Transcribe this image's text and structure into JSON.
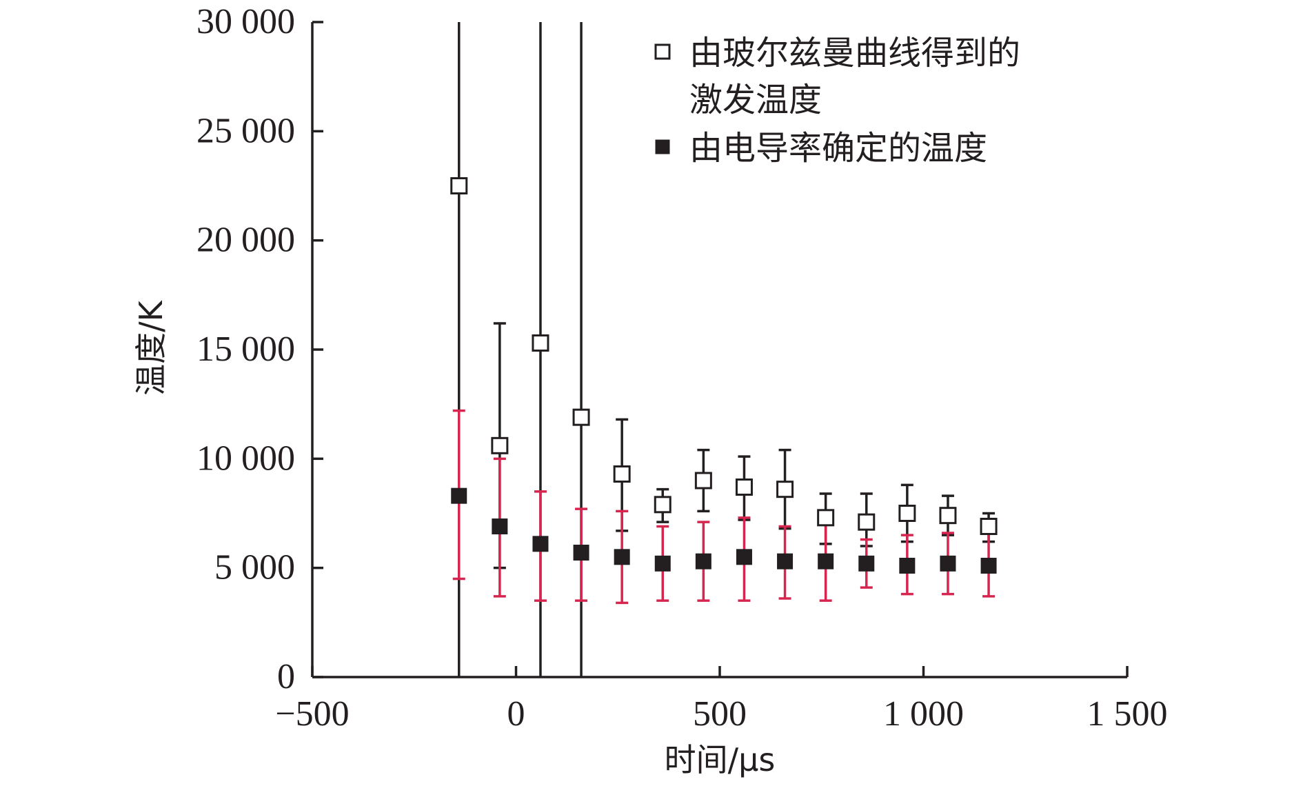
{
  "chart_data": {
    "type": "scatter",
    "xlabel": "时间/μs",
    "ylabel": "温度/K",
    "xlim": [
      -500,
      1500
    ],
    "ylim": [
      0,
      30000
    ],
    "x_ticks": [
      {
        "value": -500,
        "label": "−500"
      },
      {
        "value": 0,
        "label": "0"
      },
      {
        "value": 500,
        "label": "500"
      },
      {
        "value": 1000,
        "label": "1 000"
      },
      {
        "value": 1500,
        "label": "1 500"
      }
    ],
    "y_ticks": [
      {
        "value": 0,
        "label": "0"
      },
      {
        "value": 5000,
        "label": "5 000"
      },
      {
        "value": 10000,
        "label": "10 000"
      },
      {
        "value": 15000,
        "label": "15 000"
      },
      {
        "value": 20000,
        "label": "20 000"
      },
      {
        "value": 25000,
        "label": "25 000"
      },
      {
        "value": 30000,
        "label": "30 000"
      }
    ],
    "grid": false,
    "legend_position": "top-right",
    "series": [
      {
        "name": "由玻尔兹曼曲线得到的激发温度",
        "legend_lines": [
          "由玻尔兹曼曲线得到的",
          "激发温度"
        ],
        "marker": "open-square",
        "color": "#231f20",
        "error_color": "#231f20",
        "points": [
          {
            "x": -140,
            "y": 22500,
            "lo": 0,
            "hi": 30000
          },
          {
            "x": -40,
            "y": 10600,
            "lo": 5000,
            "hi": 16200
          },
          {
            "x": 60,
            "y": 15300,
            "lo": 0,
            "hi": 30000
          },
          {
            "x": 160,
            "y": 11900,
            "lo": 0,
            "hi": 30000
          },
          {
            "x": 260,
            "y": 9300,
            "lo": 6700,
            "hi": 11800
          },
          {
            "x": 360,
            "y": 7900,
            "lo": 7100,
            "hi": 8600
          },
          {
            "x": 460,
            "y": 9000,
            "lo": 7600,
            "hi": 10400
          },
          {
            "x": 560,
            "y": 8700,
            "lo": 7200,
            "hi": 10100
          },
          {
            "x": 660,
            "y": 8600,
            "lo": 6800,
            "hi": 10400
          },
          {
            "x": 760,
            "y": 7300,
            "lo": 6100,
            "hi": 8400
          },
          {
            "x": 860,
            "y": 7100,
            "lo": 6000,
            "hi": 8400
          },
          {
            "x": 960,
            "y": 7500,
            "lo": 6200,
            "hi": 8800
          },
          {
            "x": 1060,
            "y": 7400,
            "lo": 6500,
            "hi": 8300
          },
          {
            "x": 1160,
            "y": 6900,
            "lo": 6200,
            "hi": 7500
          }
        ]
      },
      {
        "name": "由电导率确定的温度",
        "legend_lines": [
          "由电导率确定的温度"
        ],
        "marker": "filled-square",
        "color": "#231f20",
        "error_color": "#d6264f",
        "points": [
          {
            "x": -140,
            "y": 8300,
            "lo": 4500,
            "hi": 12200
          },
          {
            "x": -40,
            "y": 6900,
            "lo": 3700,
            "hi": 10000
          },
          {
            "x": 60,
            "y": 6100,
            "lo": 3500,
            "hi": 8500
          },
          {
            "x": 160,
            "y": 5700,
            "lo": 3500,
            "hi": 7700
          },
          {
            "x": 260,
            "y": 5500,
            "lo": 3400,
            "hi": 7600
          },
          {
            "x": 360,
            "y": 5200,
            "lo": 3500,
            "hi": 6900
          },
          {
            "x": 460,
            "y": 5300,
            "lo": 3500,
            "hi": 7100
          },
          {
            "x": 560,
            "y": 5500,
            "lo": 3500,
            "hi": 7300
          },
          {
            "x": 660,
            "y": 5300,
            "lo": 3600,
            "hi": 6900
          },
          {
            "x": 760,
            "y": 5300,
            "lo": 3500,
            "hi": 7000
          },
          {
            "x": 860,
            "y": 5200,
            "lo": 4100,
            "hi": 6300
          },
          {
            "x": 960,
            "y": 5100,
            "lo": 3800,
            "hi": 6500
          },
          {
            "x": 1060,
            "y": 5200,
            "lo": 3800,
            "hi": 6600
          },
          {
            "x": 1160,
            "y": 5100,
            "lo": 3700,
            "hi": 6600
          }
        ]
      }
    ]
  }
}
